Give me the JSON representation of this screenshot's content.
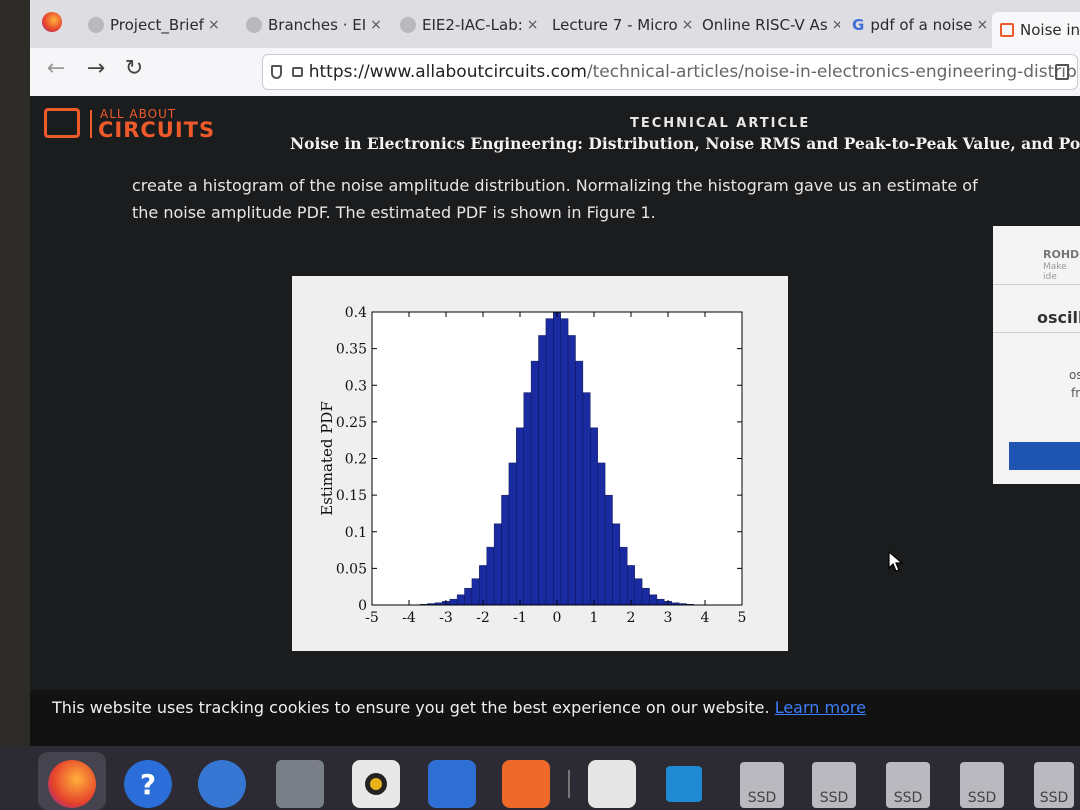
{
  "browser": {
    "tabs": [
      {
        "title": "Project_Brief",
        "close": "×",
        "icon_color": "#b8b8be"
      },
      {
        "title": "Branches · EI",
        "close": "×",
        "icon_color": "#b8b8be"
      },
      {
        "title": "EIE2-IAC-Lab:",
        "close": "×",
        "icon_color": "#b8b8be"
      },
      {
        "title": "Lecture 7 - Micro",
        "close": "×",
        "icon_color": "transparent"
      },
      {
        "title": "Online RISC-V As",
        "close": "×",
        "icon_color": "transparent"
      },
      {
        "title": "pdf of a noise",
        "close": "×",
        "icon_color": "transparent"
      },
      {
        "title": "Noise in",
        "close": "",
        "icon_color": "#ee5a2a"
      }
    ],
    "google_g": "G",
    "url_host": "https://www.allaboutcircuits.com",
    "url_path": "/technical-articles/noise-in-electronics-engineering-distribution-no"
  },
  "site": {
    "logo_small": "ALL ABOUT",
    "logo_big": "CIRCUITS",
    "kicker": "TECHNICAL ARTICLE",
    "article_title": "Noise in Electronics Engineering: Distribution, Noise RMS and Peak-to-Peak Value, and Power Spectral De"
  },
  "body": {
    "line1": "create a histogram of the noise amplitude distribution. Normalizing the histogram gave us an estimate of",
    "line2": "the noise amplitude PDF. The estimated PDF is shown in Figure 1."
  },
  "ad": {
    "brand": "ROHD",
    "sub": "Make ide",
    "word": "oscill",
    "l1": "os",
    "l2": "fr"
  },
  "cookie": {
    "text": "This website uses tracking cookies to ensure you get the best experience on our website.",
    "link": "Learn more"
  },
  "dock": {
    "help_label": "?",
    "ssd_labels": [
      "SSD",
      "SSD",
      "SSD",
      "SSD",
      "SSD"
    ]
  },
  "colors": {
    "accent": "#ee5a2a",
    "bar_fill": "#1a2aa0",
    "link": "#3f7fff"
  },
  "chart_data": {
    "type": "bar",
    "xlabel": "",
    "ylabel": "Estimated PDF",
    "xlim": [
      -5,
      5
    ],
    "ylim": [
      0,
      0.4
    ],
    "xticks": [
      "-5",
      "-4",
      "-3",
      "-2",
      "-1",
      "0",
      "1",
      "2",
      "3",
      "4",
      "5"
    ],
    "yticks": [
      "0",
      "0.05",
      "0.1",
      "0.15",
      "0.2",
      "0.25",
      "0.3",
      "0.35",
      "0.4"
    ],
    "grid": false,
    "distribution": "approximately standard normal (mean 0, std 1)",
    "bin_width": 0.1,
    "bins_x": [
      -3.6,
      -3.4,
      -3.2,
      -3.0,
      -2.8,
      -2.6,
      -2.4,
      -2.2,
      -2.0,
      -1.8,
      -1.6,
      -1.4,
      -1.2,
      -1.0,
      -0.8,
      -0.6,
      -0.4,
      -0.2,
      0.0,
      0.2,
      0.4,
      0.6,
      0.8,
      1.0,
      1.2,
      1.4,
      1.6,
      1.8,
      2.0,
      2.2,
      2.4,
      2.6,
      2.8,
      3.0,
      3.2,
      3.4,
      3.6
    ],
    "values": [
      0.001,
      0.002,
      0.003,
      0.005,
      0.008,
      0.014,
      0.023,
      0.036,
      0.054,
      0.079,
      0.111,
      0.15,
      0.194,
      0.242,
      0.29,
      0.333,
      0.368,
      0.391,
      0.399,
      0.391,
      0.368,
      0.333,
      0.29,
      0.242,
      0.194,
      0.15,
      0.111,
      0.079,
      0.054,
      0.036,
      0.023,
      0.014,
      0.008,
      0.005,
      0.003,
      0.002,
      0.001
    ]
  }
}
